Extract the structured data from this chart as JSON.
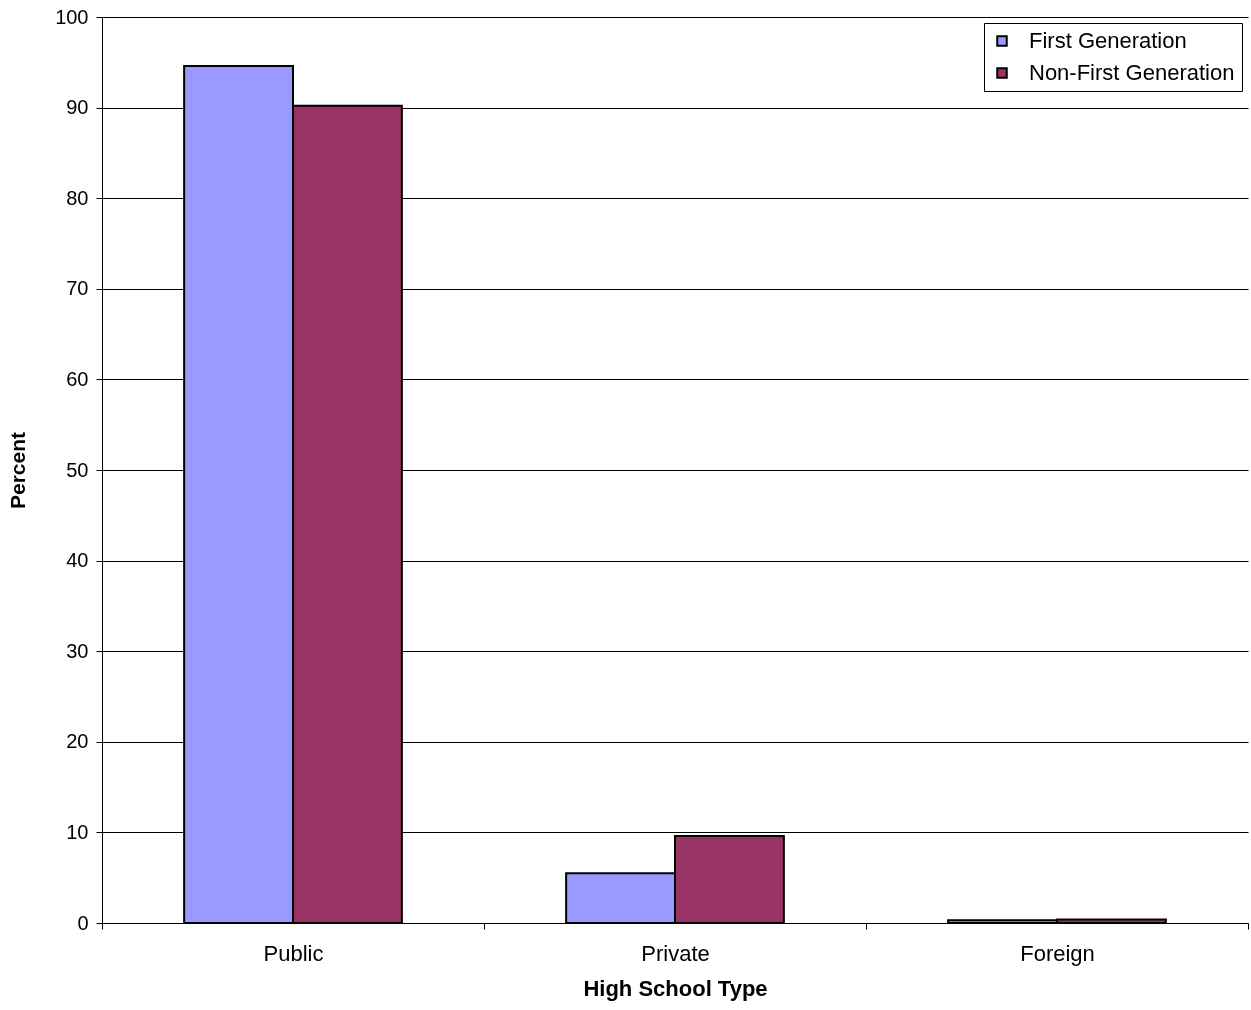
{
  "chart_data": {
    "type": "bar",
    "xlabel": "High School Type",
    "ylabel": "Percent",
    "categories": [
      "Public",
      "Private",
      "Foreign"
    ],
    "series": [
      {
        "name": "First Generation",
        "color": "#9999ff",
        "values": [
          94.6,
          5.5,
          0.3
        ]
      },
      {
        "name": "Non-First Generation",
        "color": "#993366",
        "values": [
          90.2,
          9.6,
          0.4
        ]
      }
    ],
    "ylim": [
      0,
      100
    ],
    "yticks": [
      0,
      10,
      20,
      30,
      40,
      50,
      60,
      70,
      80,
      90,
      100
    ],
    "grid": "y",
    "legend": "top right"
  }
}
